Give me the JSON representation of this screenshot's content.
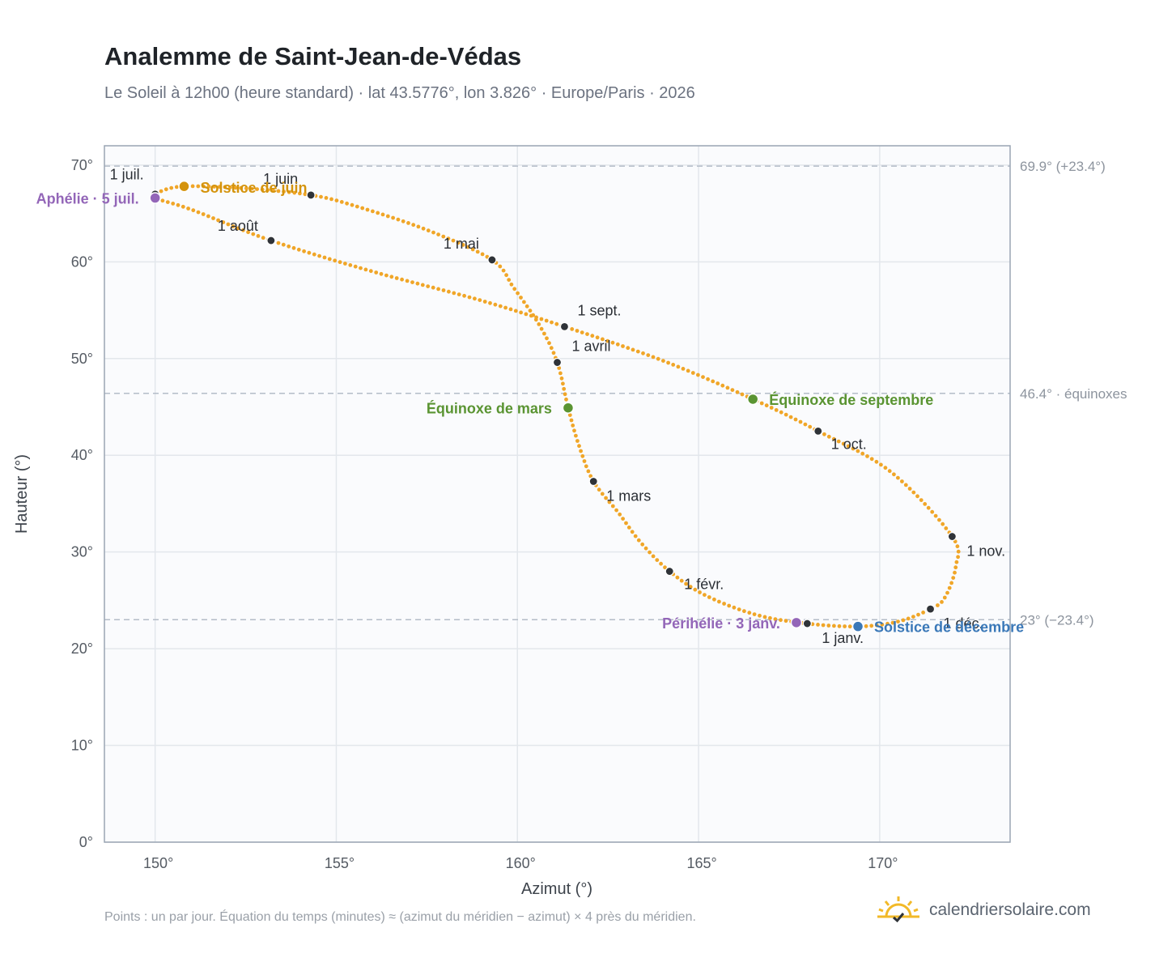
{
  "title": "Analemme de Saint-Jean-de-Védas",
  "subtitle": "Le Soleil à 12h00 (heure standard) · lat 43.5776°, lon 3.826° · Europe/Paris · 2026",
  "footer_note": "Points : un par jour. Équation du temps (minutes) ≈ (azimut du méridien − azimut) × 4 près du méridien.",
  "brand": "calendriersolaire.com",
  "colors": {
    "curve": "#f0a628",
    "month_marker": "#2f3338",
    "apsis": "#9366b8",
    "equinox": "#5a9432",
    "june_solstice": "#d4930c",
    "december_solstice": "#3a78b8",
    "grid": "#e3e7ec",
    "plot_bg": "#fafbfd",
    "frame": "#9aa5b4",
    "refline": "#b4bcc8"
  },
  "chart_data": {
    "type": "scatter",
    "xlabel": "Azimut (°)",
    "ylabel": "Hauteur (°)",
    "xlim": [
      148.6,
      173.6
    ],
    "ylim": [
      0,
      72
    ],
    "x_ticks": [
      150,
      155,
      160,
      165,
      170
    ],
    "x_tick_labels": [
      "150°",
      "155°",
      "160°",
      "165°",
      "170°"
    ],
    "y_ticks": [
      0,
      10,
      20,
      30,
      40,
      50,
      60,
      70
    ],
    "y_tick_labels": [
      "0°",
      "10°",
      "20°",
      "30°",
      "40°",
      "50°",
      "60°",
      "70°"
    ],
    "grid": true,
    "curve_anchors": [
      {
        "x": 168.0,
        "y": 22.6
      },
      {
        "x": 166.6,
        "y": 23.5
      },
      {
        "x": 165.2,
        "y": 25.5
      },
      {
        "x": 164.2,
        "y": 28.0
      },
      {
        "x": 163.4,
        "y": 31.0
      },
      {
        "x": 162.8,
        "y": 34.0
      },
      {
        "x": 162.1,
        "y": 37.3
      },
      {
        "x": 161.7,
        "y": 41.0
      },
      {
        "x": 161.4,
        "y": 44.9
      },
      {
        "x": 161.1,
        "y": 49.6
      },
      {
        "x": 160.6,
        "y": 53.5
      },
      {
        "x": 159.9,
        "y": 57.3
      },
      {
        "x": 159.3,
        "y": 60.2
      },
      {
        "x": 157.5,
        "y": 63.3
      },
      {
        "x": 155.5,
        "y": 65.8
      },
      {
        "x": 154.3,
        "y": 66.9
      },
      {
        "x": 152.5,
        "y": 67.6
      },
      {
        "x": 150.8,
        "y": 67.8
      },
      {
        "x": 150.1,
        "y": 67.2
      },
      {
        "x": 150.0,
        "y": 66.6
      },
      {
        "x": 151.0,
        "y": 65.4
      },
      {
        "x": 153.2,
        "y": 62.2
      },
      {
        "x": 156.0,
        "y": 59.0
      },
      {
        "x": 159.0,
        "y": 56.0
      },
      {
        "x": 161.3,
        "y": 53.3
      },
      {
        "x": 164.0,
        "y": 49.8
      },
      {
        "x": 166.5,
        "y": 45.8
      },
      {
        "x": 168.3,
        "y": 42.5
      },
      {
        "x": 170.3,
        "y": 38.3
      },
      {
        "x": 172.0,
        "y": 31.6
      },
      {
        "x": 172.1,
        "y": 28.5
      },
      {
        "x": 171.8,
        "y": 25.3
      },
      {
        "x": 171.4,
        "y": 24.1
      },
      {
        "x": 170.5,
        "y": 22.8
      },
      {
        "x": 169.4,
        "y": 22.3
      }
    ],
    "month_markers": [
      {
        "label": "1 janv.",
        "x": 168.0,
        "y": 22.6,
        "anchor": "start",
        "dx": 18,
        "dy": 24
      },
      {
        "label": "1 févr.",
        "x": 164.2,
        "y": 28.0,
        "anchor": "start",
        "dx": 18,
        "dy": 22
      },
      {
        "label": "1 mars",
        "x": 162.1,
        "y": 37.3,
        "anchor": "start",
        "dx": 16,
        "dy": 24
      },
      {
        "label": "1 avril",
        "x": 161.1,
        "y": 49.6,
        "anchor": "start",
        "dx": 18,
        "dy": -14
      },
      {
        "label": "1 mai",
        "x": 159.3,
        "y": 60.2,
        "anchor": "end",
        "dx": -16,
        "dy": -14
      },
      {
        "label": "1 juin",
        "x": 154.3,
        "y": 66.9,
        "anchor": "end",
        "dx": -16,
        "dy": -14
      },
      {
        "label": "1 juil.",
        "x": 150.0,
        "y": 67.0,
        "anchor": "end",
        "dx": -14,
        "dy": -18
      },
      {
        "label": "1 août",
        "x": 153.2,
        "y": 62.2,
        "anchor": "end",
        "dx": -16,
        "dy": -12
      },
      {
        "label": "1 sept.",
        "x": 161.3,
        "y": 53.3,
        "anchor": "start",
        "dx": 16,
        "dy": -14
      },
      {
        "label": "1 oct.",
        "x": 168.3,
        "y": 42.5,
        "anchor": "start",
        "dx": 16,
        "dy": 22
      },
      {
        "label": "1 nov.",
        "x": 172.0,
        "y": 31.6,
        "anchor": "start",
        "dx": 18,
        "dy": 24
      },
      {
        "label": "1 déc.",
        "x": 171.4,
        "y": 24.1,
        "anchor": "start",
        "dx": 16,
        "dy": 24
      }
    ],
    "events": [
      {
        "label": "Aphélie · 5 juil.",
        "x": 150.0,
        "y": 66.6,
        "color": "#9366b8",
        "anchor": "end",
        "dx": -20,
        "dy": 7
      },
      {
        "label": "Solstice de juin",
        "x": 150.8,
        "y": 67.8,
        "color": "#d4930c",
        "anchor": "start",
        "dx": 20,
        "dy": 8
      },
      {
        "label": "Équinoxe de mars",
        "x": 161.4,
        "y": 44.9,
        "color": "#5a9432",
        "anchor": "end",
        "dx": -20,
        "dy": 7
      },
      {
        "label": "Équinoxe de septembre",
        "x": 166.5,
        "y": 45.8,
        "color": "#5a9432",
        "anchor": "start",
        "dx": 20,
        "dy": 7
      },
      {
        "label": "Périhélie · 3 janv.",
        "x": 167.7,
        "y": 22.7,
        "color": "#9366b8",
        "anchor": "end",
        "dx": -20,
        "dy": 7
      },
      {
        "label": "Solstice de décembre",
        "x": 169.4,
        "y": 22.3,
        "color": "#3a78b8",
        "anchor": "start",
        "dx": 20,
        "dy": 7
      }
    ],
    "reference_lines": [
      {
        "y": 69.9,
        "label": "69.9° (+23.4°)"
      },
      {
        "y": 46.4,
        "label": "46.4° · équinoxes"
      },
      {
        "y": 23.0,
        "label": "23° (−23.4°)"
      }
    ]
  }
}
